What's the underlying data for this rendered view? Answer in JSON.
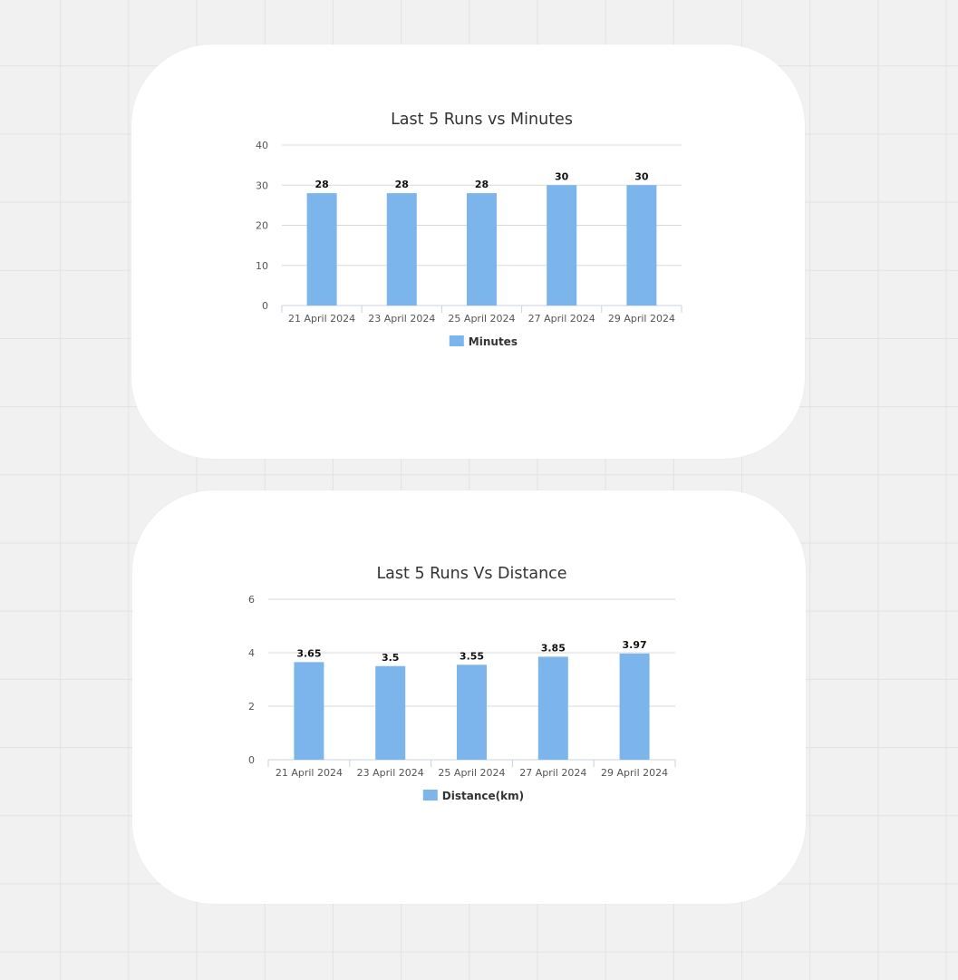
{
  "colors": {
    "background": "#f1f1f1",
    "card": "#ffffff",
    "bar": "#7cb5ec",
    "grid": "#d8d8d8",
    "axis": "#c9d1e0"
  },
  "chart_data": [
    {
      "type": "bar",
      "title": "Last 5 Runs vs Minutes",
      "xlabel": "",
      "ylabel": "",
      "categories": [
        "21 April 2024",
        "23 April 2024",
        "25 April 2024",
        "27 April 2024",
        "29 April 2024"
      ],
      "series": [
        {
          "name": "Minutes",
          "values": [
            28,
            28,
            28,
            30,
            30
          ],
          "data_labels": [
            "28",
            "28",
            "28",
            "30",
            "30"
          ]
        }
      ],
      "ylim": [
        0,
        40
      ],
      "yticks": [
        "0",
        "10",
        "20",
        "30",
        "40"
      ],
      "grid": true,
      "legend": "bottom-center"
    },
    {
      "type": "bar",
      "title": "Last 5 Runs Vs Distance",
      "xlabel": "",
      "ylabel": "",
      "categories": [
        "21 April 2024",
        "23 April 2024",
        "25 April 2024",
        "27 April 2024",
        "29 April 2024"
      ],
      "series": [
        {
          "name": "Distance(km)",
          "values": [
            3.65,
            3.5,
            3.55,
            3.85,
            3.97
          ],
          "data_labels": [
            "3.65",
            "3.5",
            "3.55",
            "3.85",
            "3.97"
          ]
        }
      ],
      "ylim": [
        0,
        6
      ],
      "yticks": [
        "0",
        "2",
        "4",
        "6"
      ],
      "grid": true,
      "legend": "bottom-center"
    }
  ]
}
